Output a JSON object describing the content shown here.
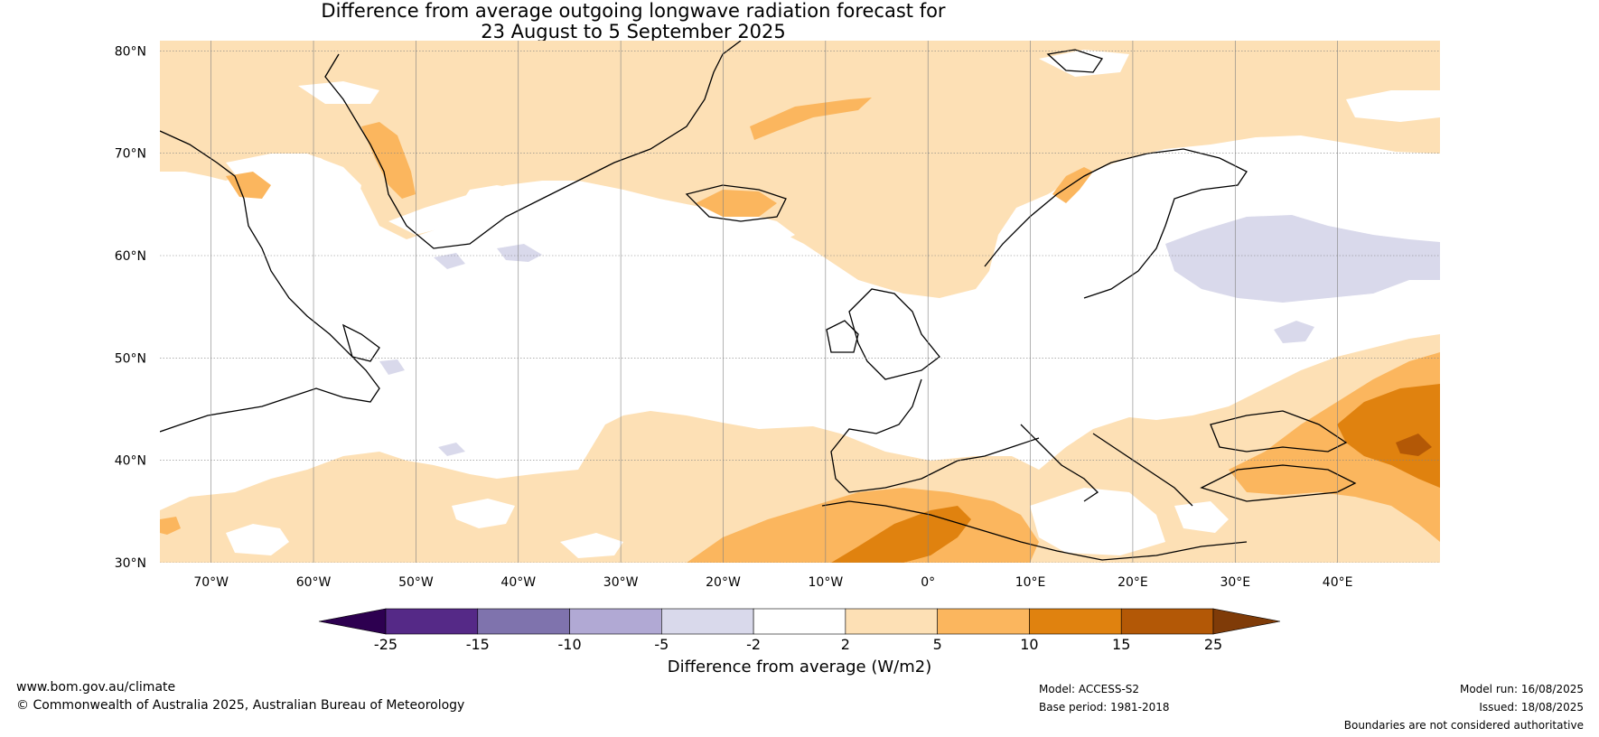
{
  "title": {
    "line1": "Difference from average outgoing longwave radiation forecast for",
    "line2": "23 August to 5 September 2025"
  },
  "axes": {
    "lat_labels": [
      "80°N",
      "70°N",
      "60°N",
      "50°N",
      "40°N",
      "30°N"
    ],
    "lat_values": [
      80,
      70,
      60,
      50,
      40,
      30
    ],
    "lon_labels": [
      "70°W",
      "60°W",
      "50°W",
      "40°W",
      "30°W",
      "20°W",
      "10°W",
      "0°",
      "10°E",
      "20°E",
      "30°E",
      "40°E"
    ],
    "lon_values": [
      -70,
      -60,
      -50,
      -40,
      -30,
      -20,
      -10,
      0,
      10,
      20,
      30,
      40
    ],
    "lon_range": [
      -75,
      50
    ],
    "lat_range": [
      30,
      81
    ]
  },
  "colorbar": {
    "title": "Difference from average (W/m2)",
    "ticks": [
      "-25",
      "-15",
      "-10",
      "-5",
      "-2",
      "2",
      "5",
      "10",
      "15",
      "25"
    ],
    "colors": [
      "#552987",
      "#7f73ad",
      "#b1a9d4",
      "#d9d9eb",
      "#ffffff",
      "#fde0b5",
      "#fbb65e",
      "#e0820f",
      "#b35806"
    ],
    "under_color": "#2d0050",
    "over_color": "#7f3b08"
  },
  "footer": {
    "website": "www.bom.gov.au/climate",
    "copyright": "© Commonwealth of Australia 2025, Australian Bureau of Meteorology",
    "model": "Model: ACCESS-S2",
    "base_period": "Base period: 1981-2018",
    "model_run": "Model run: 16/08/2025",
    "issued": "Issued: 18/08/2025",
    "disclaimer": "Boundaries are not considered authoritative"
  }
}
